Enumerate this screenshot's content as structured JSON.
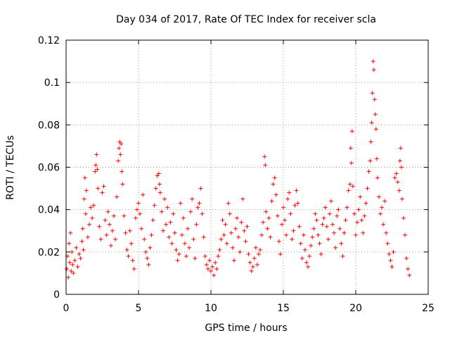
{
  "chart_data": {
    "type": "scatter",
    "title": "Day 034 of 2017, Rate Of TEC Index for receiver scla",
    "xlabel": "GPS time / hours",
    "ylabel": "ROTI / TECUs",
    "xlim": [
      0,
      25
    ],
    "ylim": [
      0,
      0.12
    ],
    "x_ticks": [
      "0",
      "5",
      "10",
      "15",
      "20",
      "25"
    ],
    "y_ticks": [
      "0",
      "0.02",
      "0.04",
      "0.06",
      "0.08",
      "0.1",
      "0.12"
    ],
    "grid": true,
    "marker": "plus",
    "color": "#ff0000",
    "series": [
      {
        "points": [
          [
            0.05,
            0.012
          ],
          [
            0.1,
            0.018
          ],
          [
            0.15,
            0.008
          ],
          [
            0.2,
            0.024
          ],
          [
            0.25,
            0.015
          ],
          [
            0.3,
            0.029
          ],
          [
            0.35,
            0.011
          ],
          [
            0.4,
            0.02
          ],
          [
            0.45,
            0.014
          ],
          [
            0.5,
            0.01
          ],
          [
            0.6,
            0.016
          ],
          [
            0.7,
            0.022
          ],
          [
            0.8,
            0.013
          ],
          [
            0.9,
            0.019
          ],
          [
            1.0,
            0.017
          ],
          [
            1.1,
            0.025
          ],
          [
            1.15,
            0.031
          ],
          [
            1.2,
            0.021
          ],
          [
            1.25,
            0.045
          ],
          [
            1.3,
            0.055
          ],
          [
            1.35,
            0.038
          ],
          [
            1.4,
            0.049
          ],
          [
            1.5,
            0.027
          ],
          [
            1.6,
            0.033
          ],
          [
            1.7,
            0.041
          ],
          [
            1.8,
            0.036
          ],
          [
            1.9,
            0.042
          ],
          [
            2.0,
            0.058
          ],
          [
            2.05,
            0.061
          ],
          [
            2.1,
            0.066
          ],
          [
            2.15,
            0.059
          ],
          [
            2.2,
            0.05
          ],
          [
            2.3,
            0.032
          ],
          [
            2.4,
            0.026
          ],
          [
            2.5,
            0.048
          ],
          [
            2.6,
            0.051
          ],
          [
            2.7,
            0.035
          ],
          [
            2.8,
            0.028
          ],
          [
            2.9,
            0.039
          ],
          [
            3.0,
            0.033
          ],
          [
            3.1,
            0.023
          ],
          [
            3.2,
            0.03
          ],
          [
            3.3,
            0.037
          ],
          [
            3.4,
            0.026
          ],
          [
            3.5,
            0.046
          ],
          [
            3.6,
            0.063
          ],
          [
            3.65,
            0.069
          ],
          [
            3.7,
            0.072
          ],
          [
            3.75,
            0.066
          ],
          [
            3.8,
            0.071
          ],
          [
            3.85,
            0.058
          ],
          [
            3.9,
            0.052
          ],
          [
            4.0,
            0.037
          ],
          [
            4.1,
            0.029
          ],
          [
            4.2,
            0.021
          ],
          [
            4.3,
            0.018
          ],
          [
            4.4,
            0.03
          ],
          [
            4.5,
            0.024
          ],
          [
            4.6,
            0.016
          ],
          [
            4.7,
            0.012
          ],
          [
            4.8,
            0.036
          ],
          [
            4.9,
            0.04
          ],
          [
            5.0,
            0.043
          ],
          [
            5.1,
            0.038
          ],
          [
            5.2,
            0.031
          ],
          [
            5.3,
            0.047
          ],
          [
            5.4,
            0.026
          ],
          [
            5.5,
            0.02
          ],
          [
            5.6,
            0.017
          ],
          [
            5.7,
            0.014
          ],
          [
            5.8,
            0.022
          ],
          [
            5.9,
            0.028
          ],
          [
            6.0,
            0.035
          ],
          [
            6.1,
            0.042
          ],
          [
            6.2,
            0.05
          ],
          [
            6.3,
            0.056
          ],
          [
            6.4,
            0.057
          ],
          [
            6.45,
            0.052
          ],
          [
            6.5,
            0.048
          ],
          [
            6.6,
            0.039
          ],
          [
            6.7,
            0.03
          ],
          [
            6.8,
            0.045
          ],
          [
            6.9,
            0.033
          ],
          [
            7.0,
            0.041
          ],
          [
            7.1,
            0.027
          ],
          [
            7.2,
            0.034
          ],
          [
            7.3,
            0.024
          ],
          [
            7.4,
            0.038
          ],
          [
            7.5,
            0.029
          ],
          [
            7.6,
            0.021
          ],
          [
            7.7,
            0.016
          ],
          [
            7.8,
            0.019
          ],
          [
            7.9,
            0.043
          ],
          [
            8.0,
            0.028
          ],
          [
            8.1,
            0.036
          ],
          [
            8.2,
            0.024
          ],
          [
            8.3,
            0.018
          ],
          [
            8.4,
            0.031
          ],
          [
            8.5,
            0.022
          ],
          [
            8.6,
            0.039
          ],
          [
            8.7,
            0.045
          ],
          [
            8.8,
            0.026
          ],
          [
            8.9,
            0.017
          ],
          [
            9.0,
            0.033
          ],
          [
            9.1,
            0.041
          ],
          [
            9.2,
            0.043
          ],
          [
            9.3,
            0.05
          ],
          [
            9.4,
            0.038
          ],
          [
            9.5,
            0.027
          ],
          [
            9.6,
            0.018
          ],
          [
            9.7,
            0.014
          ],
          [
            9.8,
            0.012
          ],
          [
            9.9,
            0.016
          ],
          [
            10.0,
            0.011
          ],
          [
            10.1,
            0.013
          ],
          [
            10.2,
            0.009
          ],
          [
            10.3,
            0.015
          ],
          [
            10.4,
            0.012
          ],
          [
            10.5,
            0.018
          ],
          [
            10.6,
            0.021
          ],
          [
            10.7,
            0.026
          ],
          [
            10.8,
            0.035
          ],
          [
            10.9,
            0.028
          ],
          [
            11.0,
            0.033
          ],
          [
            11.1,
            0.024
          ],
          [
            11.2,
            0.043
          ],
          [
            11.3,
            0.038
          ],
          [
            11.4,
            0.029
          ],
          [
            11.5,
            0.022
          ],
          [
            11.6,
            0.016
          ],
          [
            11.7,
            0.031
          ],
          [
            11.8,
            0.036
          ],
          [
            11.9,
            0.027
          ],
          [
            12.0,
            0.02
          ],
          [
            12.1,
            0.034
          ],
          [
            12.2,
            0.045
          ],
          [
            12.3,
            0.03
          ],
          [
            12.4,
            0.025
          ],
          [
            12.5,
            0.032
          ],
          [
            12.6,
            0.019
          ],
          [
            12.7,
            0.015
          ],
          [
            12.8,
            0.011
          ],
          [
            12.9,
            0.013
          ],
          [
            13.0,
            0.017
          ],
          [
            13.1,
            0.022
          ],
          [
            13.2,
            0.014
          ],
          [
            13.3,
            0.019
          ],
          [
            13.4,
            0.021
          ],
          [
            13.5,
            0.028
          ],
          [
            13.6,
            0.034
          ],
          [
            13.7,
            0.065
          ],
          [
            13.75,
            0.061
          ],
          [
            13.8,
            0.039
          ],
          [
            13.9,
            0.031
          ],
          [
            14.0,
            0.036
          ],
          [
            14.1,
            0.027
          ],
          [
            14.2,
            0.044
          ],
          [
            14.3,
            0.052
          ],
          [
            14.4,
            0.055
          ],
          [
            14.5,
            0.047
          ],
          [
            14.6,
            0.037
          ],
          [
            14.7,
            0.025
          ],
          [
            14.8,
            0.019
          ],
          [
            14.9,
            0.033
          ],
          [
            15.0,
            0.041
          ],
          [
            15.1,
            0.035
          ],
          [
            15.2,
            0.028
          ],
          [
            15.3,
            0.045
          ],
          [
            15.4,
            0.048
          ],
          [
            15.5,
            0.038
          ],
          [
            15.6,
            0.026
          ],
          [
            15.7,
            0.03
          ],
          [
            15.8,
            0.042
          ],
          [
            15.9,
            0.049
          ],
          [
            16.0,
            0.043
          ],
          [
            16.1,
            0.032
          ],
          [
            16.2,
            0.024
          ],
          [
            16.3,
            0.017
          ],
          [
            16.4,
            0.028
          ],
          [
            16.5,
            0.021
          ],
          [
            16.6,
            0.015
          ],
          [
            16.7,
            0.013
          ],
          [
            16.8,
            0.018
          ],
          [
            16.9,
            0.023
          ],
          [
            17.0,
            0.027
          ],
          [
            17.1,
            0.031
          ],
          [
            17.2,
            0.038
          ],
          [
            17.3,
            0.035
          ],
          [
            17.4,
            0.028
          ],
          [
            17.5,
            0.024
          ],
          [
            17.6,
            0.019
          ],
          [
            17.7,
            0.033
          ],
          [
            17.8,
            0.036
          ],
          [
            17.9,
            0.041
          ],
          [
            18.0,
            0.032
          ],
          [
            18.1,
            0.026
          ],
          [
            18.2,
            0.038
          ],
          [
            18.3,
            0.044
          ],
          [
            18.4,
            0.033
          ],
          [
            18.5,
            0.029
          ],
          [
            18.6,
            0.022
          ],
          [
            18.7,
            0.037
          ],
          [
            18.8,
            0.04
          ],
          [
            18.9,
            0.031
          ],
          [
            19.0,
            0.024
          ],
          [
            19.1,
            0.018
          ],
          [
            19.2,
            0.029
          ],
          [
            19.3,
            0.035
          ],
          [
            19.4,
            0.041
          ],
          [
            19.5,
            0.049
          ],
          [
            19.6,
            0.052
          ],
          [
            19.65,
            0.069
          ],
          [
            19.7,
            0.062
          ],
          [
            19.75,
            0.077
          ],
          [
            19.8,
            0.051
          ],
          [
            19.9,
            0.038
          ],
          [
            20.0,
            0.028
          ],
          [
            20.1,
            0.034
          ],
          [
            20.2,
            0.04
          ],
          [
            20.3,
            0.046
          ],
          [
            20.4,
            0.035
          ],
          [
            20.5,
            0.029
          ],
          [
            20.6,
            0.037
          ],
          [
            20.7,
            0.043
          ],
          [
            20.8,
            0.05
          ],
          [
            20.9,
            0.058
          ],
          [
            21.0,
            0.063
          ],
          [
            21.05,
            0.072
          ],
          [
            21.1,
            0.081
          ],
          [
            21.15,
            0.095
          ],
          [
            21.2,
            0.11
          ],
          [
            21.25,
            0.106
          ],
          [
            21.3,
            0.092
          ],
          [
            21.35,
            0.085
          ],
          [
            21.4,
            0.078
          ],
          [
            21.45,
            0.064
          ],
          [
            21.5,
            0.055
          ],
          [
            21.6,
            0.046
          ],
          [
            21.7,
            0.038
          ],
          [
            21.8,
            0.041
          ],
          [
            21.9,
            0.033
          ],
          [
            22.0,
            0.044
          ],
          [
            22.1,
            0.029
          ],
          [
            22.2,
            0.024
          ],
          [
            22.3,
            0.019
          ],
          [
            22.4,
            0.016
          ],
          [
            22.5,
            0.013
          ],
          [
            22.6,
            0.02
          ],
          [
            22.7,
            0.055
          ],
          [
            22.8,
            0.057
          ],
          [
            22.9,
            0.053
          ],
          [
            23.0,
            0.049
          ],
          [
            23.05,
            0.063
          ],
          [
            23.1,
            0.069
          ],
          [
            23.15,
            0.06
          ],
          [
            23.2,
            0.045
          ],
          [
            23.3,
            0.036
          ],
          [
            23.4,
            0.028
          ],
          [
            23.5,
            0.017
          ],
          [
            23.6,
            0.012
          ],
          [
            23.7,
            0.009
          ]
        ]
      }
    ]
  }
}
